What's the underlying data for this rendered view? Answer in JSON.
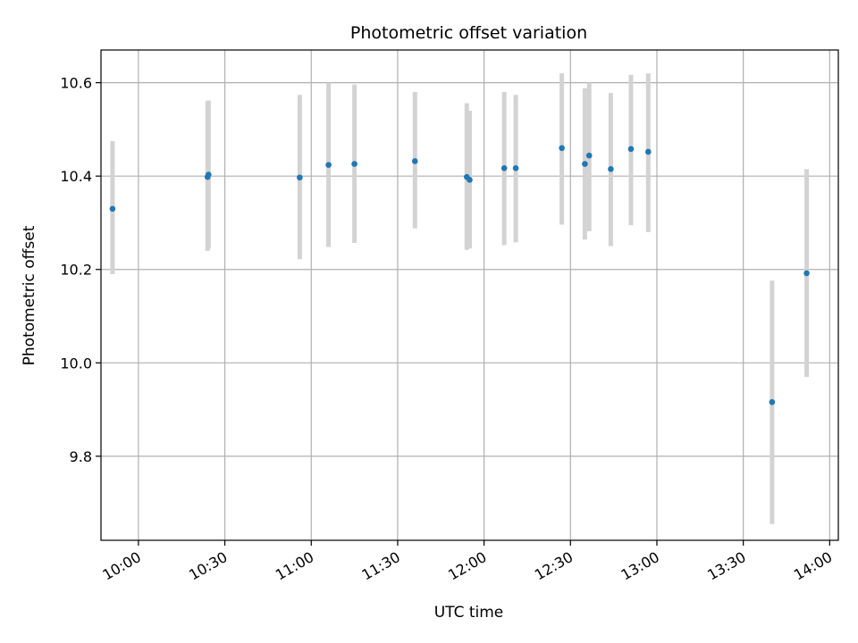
{
  "chart_data": {
    "type": "scatter",
    "title": "Photometric offset variation",
    "xlabel": "UTC time",
    "ylabel": "Photometric offset",
    "x_ticks": [
      "10:00",
      "10:30",
      "11:00",
      "11:30",
      "12:00",
      "12:30",
      "13:00",
      "13:30",
      "14:00"
    ],
    "y_ticks": [
      "9.8",
      "10.0",
      "10.2",
      "10.4",
      "10.6"
    ],
    "xlim": [
      "09:47",
      "14:03"
    ],
    "ylim": [
      9.62,
      10.67
    ],
    "grid": true,
    "marker_color": "#1f77b4",
    "errorbar_color": "#d3d3d3",
    "points": [
      {
        "x": "09:51",
        "y": 10.33,
        "ylo": 10.19,
        "yhi": 10.475
      },
      {
        "x": "10:24",
        "y": 10.398,
        "ylo": 10.24,
        "yhi": 10.56
      },
      {
        "x": "10:24:20",
        "y": 10.403,
        "ylo": 10.245,
        "yhi": 10.562
      },
      {
        "x": "10:56",
        "y": 10.397,
        "ylo": 10.222,
        "yhi": 10.574
      },
      {
        "x": "11:06",
        "y": 10.424,
        "ylo": 10.248,
        "yhi": 10.6
      },
      {
        "x": "11:15",
        "y": 10.426,
        "ylo": 10.257,
        "yhi": 10.596
      },
      {
        "x": "11:36",
        "y": 10.432,
        "ylo": 10.288,
        "yhi": 10.58
      },
      {
        "x": "11:54",
        "y": 10.398,
        "ylo": 10.242,
        "yhi": 10.556
      },
      {
        "x": "11:55",
        "y": 10.392,
        "ylo": 10.245,
        "yhi": 10.54
      },
      {
        "x": "12:07",
        "y": 10.417,
        "ylo": 10.252,
        "yhi": 10.58
      },
      {
        "x": "12:11",
        "y": 10.417,
        "ylo": 10.258,
        "yhi": 10.574
      },
      {
        "x": "12:27",
        "y": 10.46,
        "ylo": 10.296,
        "yhi": 10.62
      },
      {
        "x": "12:35",
        "y": 10.426,
        "ylo": 10.264,
        "yhi": 10.588
      },
      {
        "x": "12:36:30",
        "y": 10.444,
        "ylo": 10.282,
        "yhi": 10.6
      },
      {
        "x": "12:44",
        "y": 10.415,
        "ylo": 10.25,
        "yhi": 10.578
      },
      {
        "x": "12:51",
        "y": 10.458,
        "ylo": 10.295,
        "yhi": 10.617
      },
      {
        "x": "12:57",
        "y": 10.452,
        "ylo": 10.28,
        "yhi": 10.62
      },
      {
        "x": "13:40",
        "y": 9.916,
        "ylo": 9.655,
        "yhi": 10.176
      },
      {
        "x": "13:52",
        "y": 10.192,
        "ylo": 9.97,
        "yhi": 10.415
      }
    ]
  }
}
